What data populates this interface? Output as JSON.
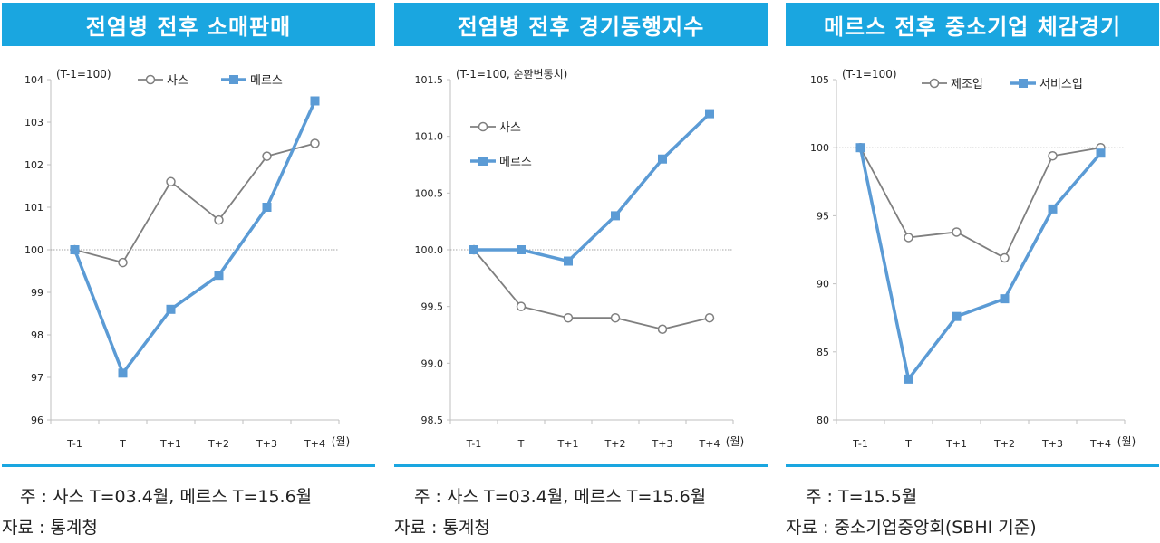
{
  "charts": [
    {
      "title": "전염병 전후 소매판매",
      "unit_note": "(T-1=100)",
      "note_label": "주 :",
      "note": "사스 T=03.4월, 메르스 T=15.6월",
      "source_label": "자료 :",
      "source": "통계청"
    },
    {
      "title": "전염병 전후 경기동행지수",
      "unit_note": "(T-1=100, 순환변동치)",
      "note_label": "주 :",
      "note": "사스 T=03.4월, 메르스 T=15.6월",
      "source_label": "자료 :",
      "source": "통계청"
    },
    {
      "title": "메르스 전후 중소기업 체감경기",
      "unit_note": "(T-1=100)",
      "note_label": "주 :",
      "note": "T=15.5월",
      "source_label": "자료 :",
      "source": "중소기업중앙회(SBHI 기준)"
    }
  ],
  "colors": {
    "accent": "#1aa6e0",
    "series_gray": "#7f7f7f",
    "series_blue": "#5b9bd5"
  },
  "chart_data": [
    {
      "type": "line",
      "title": "전염병 전후 소매판매",
      "categories": [
        "T-1",
        "T",
        "T+1",
        "T+2",
        "T+3",
        "T+4"
      ],
      "x_unit": "(월)",
      "ylim": [
        96,
        104
      ],
      "yticks": [
        "96",
        "97",
        "98",
        "99",
        "100",
        "101",
        "102",
        "103",
        "104"
      ],
      "reference_line": 100,
      "legend_position": "top-left",
      "series": [
        {
          "name": "사스",
          "marker": "circle",
          "color": "#7f7f7f",
          "values": [
            100,
            99.7,
            101.6,
            100.7,
            102.2,
            102.5
          ]
        },
        {
          "name": "메르스",
          "marker": "square",
          "color": "#5b9bd5",
          "values": [
            100,
            97.1,
            98.6,
            99.4,
            101.0,
            103.5
          ]
        }
      ]
    },
    {
      "type": "line",
      "title": "전염병 전후 경기동행지수",
      "categories": [
        "T-1",
        "T",
        "T+1",
        "T+2",
        "T+3",
        "T+4"
      ],
      "x_unit": "(월)",
      "ylim": [
        98.5,
        101.5
      ],
      "yticks": [
        "98.5",
        "99.0",
        "99.5",
        "100.0",
        "100.5",
        "101.0",
        "101.5"
      ],
      "reference_line": 100,
      "legend_position": "left",
      "series": [
        {
          "name": "사스",
          "marker": "circle",
          "color": "#7f7f7f",
          "values": [
            100.0,
            99.5,
            99.4,
            99.4,
            99.3,
            99.4
          ]
        },
        {
          "name": "메르스",
          "marker": "square",
          "color": "#5b9bd5",
          "values": [
            100.0,
            100.0,
            99.9,
            100.3,
            100.8,
            101.2
          ]
        }
      ]
    },
    {
      "type": "line",
      "title": "메르스 전후 중소기업 체감경기",
      "categories": [
        "T-1",
        "T",
        "T+1",
        "T+2",
        "T+3",
        "T+4"
      ],
      "x_unit": "(월)",
      "ylim": [
        80,
        105
      ],
      "yticks": [
        "80",
        "85",
        "90",
        "95",
        "100",
        "105"
      ],
      "reference_line": 100,
      "legend_position": "top-left",
      "series": [
        {
          "name": "제조업",
          "marker": "circle",
          "color": "#7f7f7f",
          "values": [
            100,
            93.4,
            93.8,
            91.9,
            99.4,
            100.0
          ]
        },
        {
          "name": "서비스업",
          "marker": "square",
          "color": "#5b9bd5",
          "values": [
            100,
            83.0,
            87.6,
            88.9,
            95.5,
            99.6
          ]
        }
      ]
    }
  ]
}
